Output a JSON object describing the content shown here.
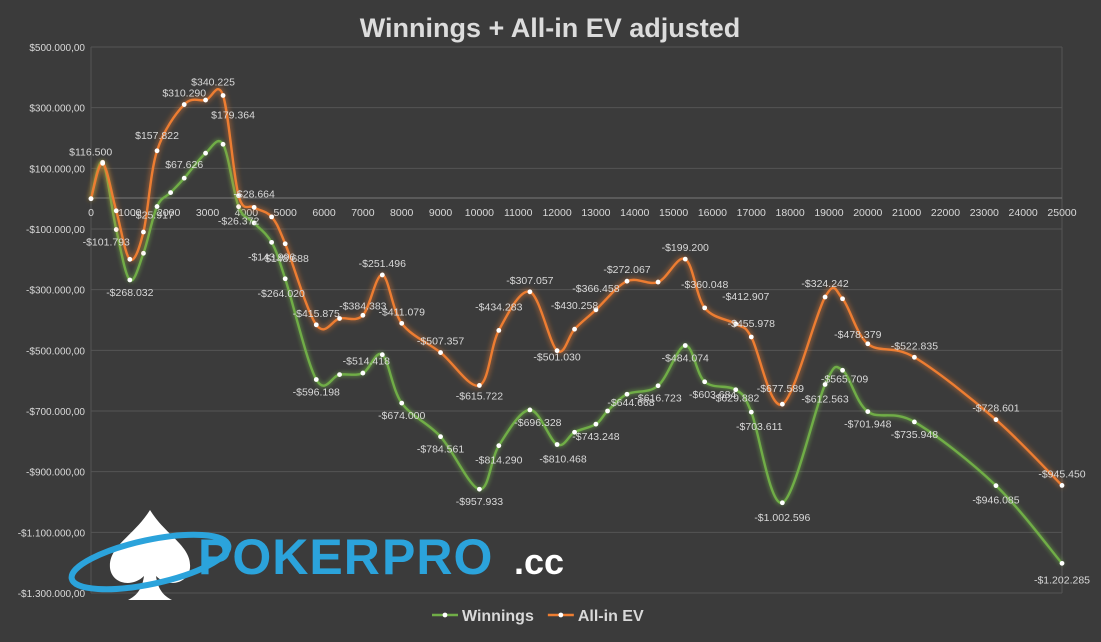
{
  "logo": {
    "word_1": "POKER",
    "word_2": "PRO",
    "suffix": ".cc",
    "colors": {
      "primary": "#2ba3db",
      "secondary": "#ffffff",
      "dark": "#1b5f8e"
    }
  },
  "chart_data": {
    "type": "line",
    "title": "Winnings + All-in EV adjusted",
    "xlabel": "",
    "ylabel": "",
    "xlim": [
      0,
      25000
    ],
    "ylim": [
      -1300000,
      500000
    ],
    "x_ticks": [
      0,
      1000,
      2000,
      3000,
      4000,
      5000,
      6000,
      7000,
      8000,
      9000,
      10000,
      11000,
      12000,
      13000,
      14000,
      15000,
      16000,
      17000,
      18000,
      19000,
      20000,
      21000,
      22000,
      23000,
      24000,
      25000
    ],
    "y_ticks": [
      {
        "value": 500000,
        "label": "$500.000,00"
      },
      {
        "value": 300000,
        "label": "$300.000,00"
      },
      {
        "value": 100000,
        "label": "$100.000,00"
      },
      {
        "value": -100000,
        "label": "-$100.000,00"
      },
      {
        "value": -300000,
        "label": "-$300.000,00"
      },
      {
        "value": -500000,
        "label": "-$500.000,00"
      },
      {
        "value": -700000,
        "label": "-$700.000,00"
      },
      {
        "value": -900000,
        "label": "-$900.000,00"
      },
      {
        "value": -1100000,
        "label": "-$1.100.000,00"
      },
      {
        "value": -1300000,
        "label": "-$1.300.000,00"
      }
    ],
    "grid": true,
    "legend_position": "bottom",
    "colors": {
      "background": "#3b3b3b",
      "grid": "#555555",
      "text": "#d9d9d9"
    },
    "series": [
      {
        "name": "Winnings",
        "color": "#70ad47",
        "points": [
          {
            "x": 0,
            "y": 0
          },
          {
            "x": 300,
            "y": 120000
          },
          {
            "x": 650,
            "y": -101793,
            "label": "-$101.793"
          },
          {
            "x": 1000,
            "y": -268032,
            "label": "-$268.032"
          },
          {
            "x": 1350,
            "y": -180000
          },
          {
            "x": 1700,
            "y": -25917,
            "label": "-$25.917"
          },
          {
            "x": 2050,
            "y": 20000
          },
          {
            "x": 2400,
            "y": 67626,
            "label": "$67.626"
          },
          {
            "x": 2950,
            "y": 150000
          },
          {
            "x": 3400,
            "y": 179364,
            "label": "$179.364"
          },
          {
            "x": 3800,
            "y": -26372,
            "label": "-$26.372"
          },
          {
            "x": 4200,
            "y": -80000
          },
          {
            "x": 4650,
            "y": -143996,
            "label": "-$143.996"
          },
          {
            "x": 5000,
            "y": -264020,
            "label": "-$264.020"
          },
          {
            "x": 5800,
            "y": -596198,
            "label": "-$596.198"
          },
          {
            "x": 6400,
            "y": -580000
          },
          {
            "x": 7000,
            "y": -575000
          },
          {
            "x": 7500,
            "y": -514418,
            "label": "-$514.418"
          },
          {
            "x": 8000,
            "y": -674000,
            "label": "-$674.000"
          },
          {
            "x": 9000,
            "y": -784561,
            "label": "-$784.561"
          },
          {
            "x": 10000,
            "y": -957933,
            "label": "-$957.933"
          },
          {
            "x": 10500,
            "y": -814290,
            "label": "-$814.290"
          },
          {
            "x": 11300,
            "y": -696328,
            "label": "-$696.328"
          },
          {
            "x": 12000,
            "y": -810468,
            "label": "-$810.468"
          },
          {
            "x": 12450,
            "y": -770000
          },
          {
            "x": 13000,
            "y": -743248,
            "label": "-$743.248"
          },
          {
            "x": 13300,
            "y": -700000
          },
          {
            "x": 13800,
            "y": -644668,
            "label": "-$644.668"
          },
          {
            "x": 14600,
            "y": -616723,
            "label": "-$616.723"
          },
          {
            "x": 15300,
            "y": -484074,
            "label": "-$484.074"
          },
          {
            "x": 15800,
            "y": -603684,
            "label": "-$603.684"
          },
          {
            "x": 16600,
            "y": -629882,
            "label": "-$629.882"
          },
          {
            "x": 17000,
            "y": -703611,
            "label": "-$703.611"
          },
          {
            "x": 17800,
            "y": -1002596,
            "label": "-$1.002.596"
          },
          {
            "x": 18900,
            "y": -612563,
            "label": "-$612.563"
          },
          {
            "x": 19350,
            "y": -565709,
            "label": "-$565.709"
          },
          {
            "x": 20000,
            "y": -701948,
            "label": "-$701.948"
          },
          {
            "x": 21200,
            "y": -735948,
            "label": "-$735.948"
          },
          {
            "x": 23300,
            "y": -946085,
            "label": "-$946.085"
          },
          {
            "x": 25000,
            "y": -1202285,
            "label": "-$1.202.285"
          }
        ]
      },
      {
        "name": "All-in EV",
        "color": "#ed7d31",
        "points": [
          {
            "x": 0,
            "y": 0
          },
          {
            "x": 300,
            "y": 116500,
            "label": "$116.500"
          },
          {
            "x": 650,
            "y": -40000
          },
          {
            "x": 1000,
            "y": -200000
          },
          {
            "x": 1350,
            "y": -110000
          },
          {
            "x": 1700,
            "y": 157822,
            "label": "$157.822"
          },
          {
            "x": 2400,
            "y": 310290,
            "label": "$310.290"
          },
          {
            "x": 2950,
            "y": 325000
          },
          {
            "x": 3400,
            "y": 340225,
            "label": "$340.225"
          },
          {
            "x": 3800,
            "y": 10000
          },
          {
            "x": 4200,
            "y": -28664,
            "label": "-$28.664"
          },
          {
            "x": 4650,
            "y": -60000
          },
          {
            "x": 5000,
            "y": -148688,
            "label": "-$148.688"
          },
          {
            "x": 5800,
            "y": -415875,
            "label": "-$415.875"
          },
          {
            "x": 6400,
            "y": -395000
          },
          {
            "x": 7000,
            "y": -384383,
            "label": "-$384.383"
          },
          {
            "x": 7500,
            "y": -251496,
            "label": "-$251.496"
          },
          {
            "x": 8000,
            "y": -411079,
            "label": "-$411.079"
          },
          {
            "x": 9000,
            "y": -507357,
            "label": "-$507.357"
          },
          {
            "x": 10000,
            "y": -615722,
            "label": "-$615.722"
          },
          {
            "x": 10500,
            "y": -434283,
            "label": "-$434.283"
          },
          {
            "x": 11300,
            "y": -307057,
            "label": "-$307.057"
          },
          {
            "x": 12000,
            "y": -501030,
            "label": "-$501.030"
          },
          {
            "x": 12450,
            "y": -430258,
            "label": "-$430.258"
          },
          {
            "x": 13000,
            "y": -366458,
            "label": "-$366.458"
          },
          {
            "x": 13800,
            "y": -272067,
            "label": "-$272.067"
          },
          {
            "x": 14600,
            "y": -275000
          },
          {
            "x": 15300,
            "y": -199200,
            "label": "-$199.200"
          },
          {
            "x": 15800,
            "y": -360048,
            "label": "-$360.048"
          },
          {
            "x": 16600,
            "y": -412907,
            "label": "-$412.907"
          },
          {
            "x": 17000,
            "y": -455978,
            "label": "-$455.978"
          },
          {
            "x": 17800,
            "y": -677589,
            "label": "-$677.589"
          },
          {
            "x": 18900,
            "y": -324242,
            "label": "-$324.242"
          },
          {
            "x": 19350,
            "y": -330000
          },
          {
            "x": 20000,
            "y": -478379,
            "label": "-$478.379"
          },
          {
            "x": 21200,
            "y": -522835,
            "label": "-$522.835"
          },
          {
            "x": 23300,
            "y": -728601,
            "label": "-$728.601"
          },
          {
            "x": 25000,
            "y": -945450,
            "label": "-$945.450"
          }
        ]
      }
    ]
  }
}
